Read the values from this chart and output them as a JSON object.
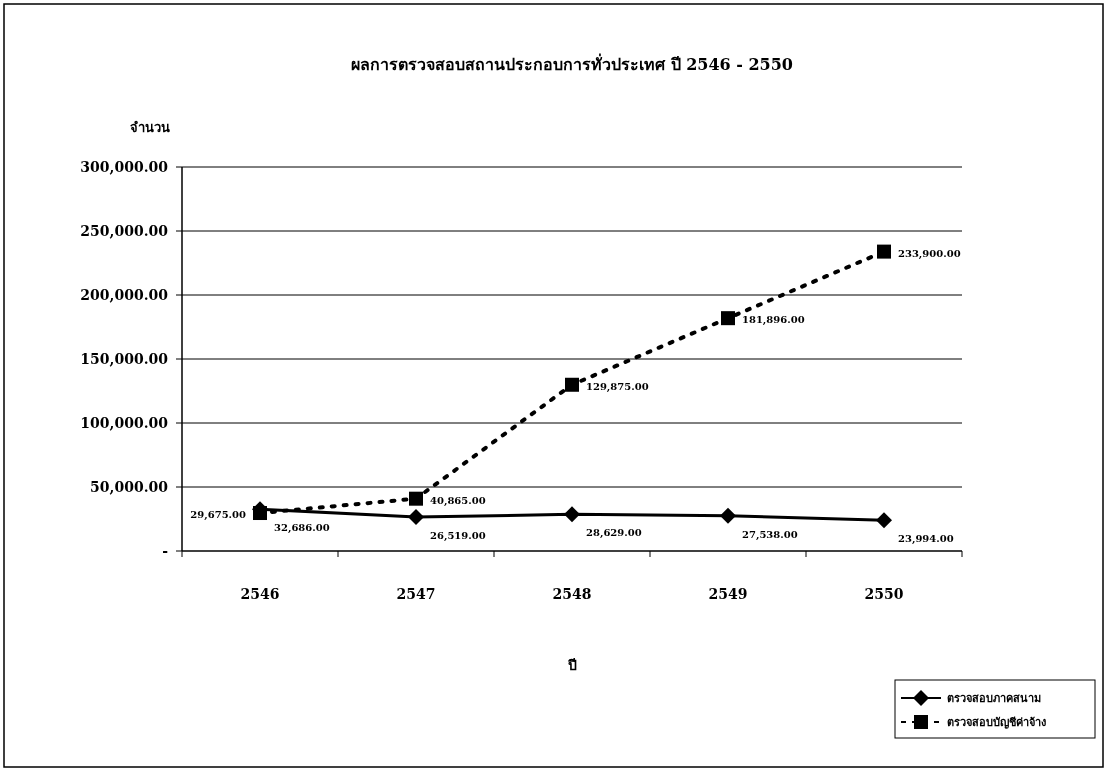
{
  "chart_data": {
    "type": "line",
    "title": "ผลการตรวจสอบสถานประกอบการทั่วประเทศ ปี 2546 - 2550",
    "xlabel": "ปี",
    "ylabel": "จำนวน",
    "categories": [
      "2546",
      "2547",
      "2548",
      "2549",
      "2550"
    ],
    "series": [
      {
        "name": "ตรวจสอบภาคสนาม",
        "color": "#000000",
        "marker": "diamond",
        "line_style": "solid",
        "values": [
          32686,
          26519,
          28629,
          27538,
          23994
        ],
        "value_labels": [
          "32,686.00",
          "26,519.00",
          "28,629.00",
          "27,538.00",
          "23,994.00"
        ]
      },
      {
        "name": "ตรวจสอบบัญชีค่าจ้าง",
        "color": "#000000",
        "marker": "square",
        "line_style": "dotted",
        "values": [
          29675,
          40865,
          129875,
          181896,
          233900
        ],
        "value_labels": [
          "29,675.00",
          "40,865.00",
          "129,875.00",
          "181,896.00",
          "233,900.00"
        ]
      }
    ],
    "ylim": [
      0,
      300000
    ],
    "yticks": [
      {
        "value": 0,
        "label": "-"
      },
      {
        "value": 50000,
        "label": "50,000.00"
      },
      {
        "value": 100000,
        "label": "100,000.00"
      },
      {
        "value": 150000,
        "label": "150,000.00"
      },
      {
        "value": 200000,
        "label": "200,000.00"
      },
      {
        "value": 250000,
        "label": "250,000.00"
      },
      {
        "value": 300000,
        "label": "300,000.00"
      }
    ],
    "grid": "y",
    "legend": "bottom right"
  }
}
